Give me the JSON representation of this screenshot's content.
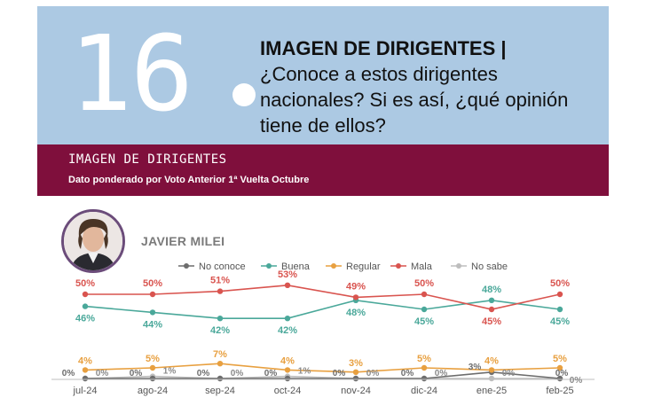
{
  "header": {
    "number": "16",
    "title_bold": "IMAGEN DE DIRIGENTES |",
    "question": "¿Conoce a estos dirigentes nacionales? Si es así, ¿qué opinión tiene de ellos?"
  },
  "band": {
    "title": "IMAGEN DE DIRIGENTES",
    "subtitle": "Dato ponderado por Voto Anterior 1ª Vuelta Octubre"
  },
  "person": {
    "name": "JAVIER MILEI"
  },
  "colors": {
    "no_conoce": "#6d6d6d",
    "buena": "#4aa89a",
    "regular": "#e8a040",
    "mala": "#d9544f",
    "no_sabe": "#bdbdbd",
    "header_bg": "#acc9e3",
    "band_bg": "#7f0f3c"
  },
  "chart_data": {
    "type": "line",
    "categories": [
      "jul-24",
      "ago-24",
      "sep-24",
      "oct-24",
      "nov-24",
      "dic-24",
      "ene-25",
      "feb-25"
    ],
    "legend_position": "top",
    "series": [
      {
        "name": "No conoce",
        "key": "no_conoce",
        "values": [
          0,
          0,
          0,
          0,
          0,
          0,
          3,
          0
        ],
        "labels": [
          "0%",
          "0%",
          "0%",
          "0%",
          "0%",
          "0%",
          "3%",
          "0%"
        ]
      },
      {
        "name": "Buena",
        "key": "buena",
        "values": [
          46,
          44,
          42,
          42,
          48,
          45,
          48,
          45
        ],
        "labels": [
          "46%",
          "44%",
          "42%",
          "42%",
          "48%",
          "45%",
          "48%",
          "45%"
        ]
      },
      {
        "name": "Regular",
        "key": "regular",
        "values": [
          4,
          5,
          7,
          4,
          3,
          5,
          4,
          5
        ],
        "labels": [
          "4%",
          "5%",
          "7%",
          "4%",
          "3%",
          "5%",
          "4%",
          "5%"
        ]
      },
      {
        "name": "Mala",
        "key": "mala",
        "values": [
          50,
          50,
          51,
          53,
          49,
          50,
          45,
          50
        ],
        "labels": [
          "50%",
          "50%",
          "51%",
          "53%",
          "49%",
          "50%",
          "45%",
          "50%"
        ]
      },
      {
        "name": "No sabe",
        "key": "no_sabe",
        "values": [
          0,
          1,
          0,
          1,
          0,
          0,
          0,
          0
        ],
        "labels": [
          "0%",
          "1%",
          "0%",
          "1%",
          "0%",
          "0%",
          "0%",
          "0%"
        ]
      }
    ]
  }
}
